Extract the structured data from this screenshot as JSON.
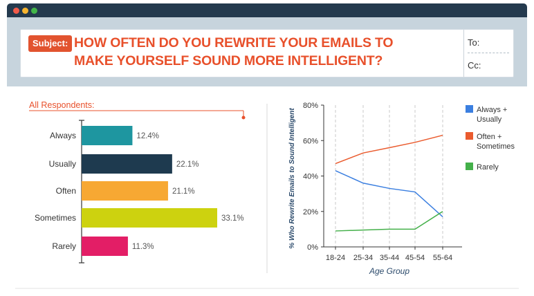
{
  "header": {
    "subject_label": "Subject:",
    "title_line1": "HOW OFTEN DO YOU REWRITE YOUR EMAILS TO",
    "title_line2": "MAKE YOURSELF SOUND MORE INTELLIGENT?",
    "to_label": "To:",
    "cc_label": "Cc:"
  },
  "colors": {
    "accent": "#e8502b",
    "window_bar": "#243a4e",
    "header_bg": "#c7d4dd"
  },
  "chart_data": [
    {
      "type": "bar",
      "orientation": "horizontal",
      "title": "All Respondents:",
      "categories": [
        "Always",
        "Usually",
        "Often",
        "Sometimes",
        "Rarely"
      ],
      "values": [
        12.4,
        22.1,
        21.1,
        33.1,
        11.3
      ],
      "data_labels": [
        "12.4%",
        "22.1%",
        "21.1%",
        "33.1%",
        "11.3%"
      ],
      "colors": [
        "#1e96a0",
        "#1e3a4f",
        "#f7a833",
        "#cdd20f",
        "#e31e66"
      ],
      "xlim": [
        0,
        35
      ]
    },
    {
      "type": "line",
      "xlabel": "Age Group",
      "ylabel": "% Who Rewrite Emails to Sound Intelligent",
      "categories": [
        "18-24",
        "25-34",
        "35-44",
        "45-54",
        "55-64"
      ],
      "ylim": [
        0,
        80
      ],
      "yticks": [
        "0%",
        "20%",
        "40%",
        "60%",
        "80%"
      ],
      "grid": "vertical-dashed",
      "legend": "right",
      "series": [
        {
          "name": "Always + Usually",
          "color": "#3b7fe0",
          "values": [
            43,
            36,
            33,
            31,
            17
          ]
        },
        {
          "name": "Often + Sometimes",
          "color": "#ea5b2e",
          "values": [
            47,
            53,
            56,
            59,
            63
          ]
        },
        {
          "name": "Rarely",
          "color": "#44b04a",
          "values": [
            9,
            9.5,
            10,
            10,
            20
          ]
        }
      ]
    }
  ]
}
